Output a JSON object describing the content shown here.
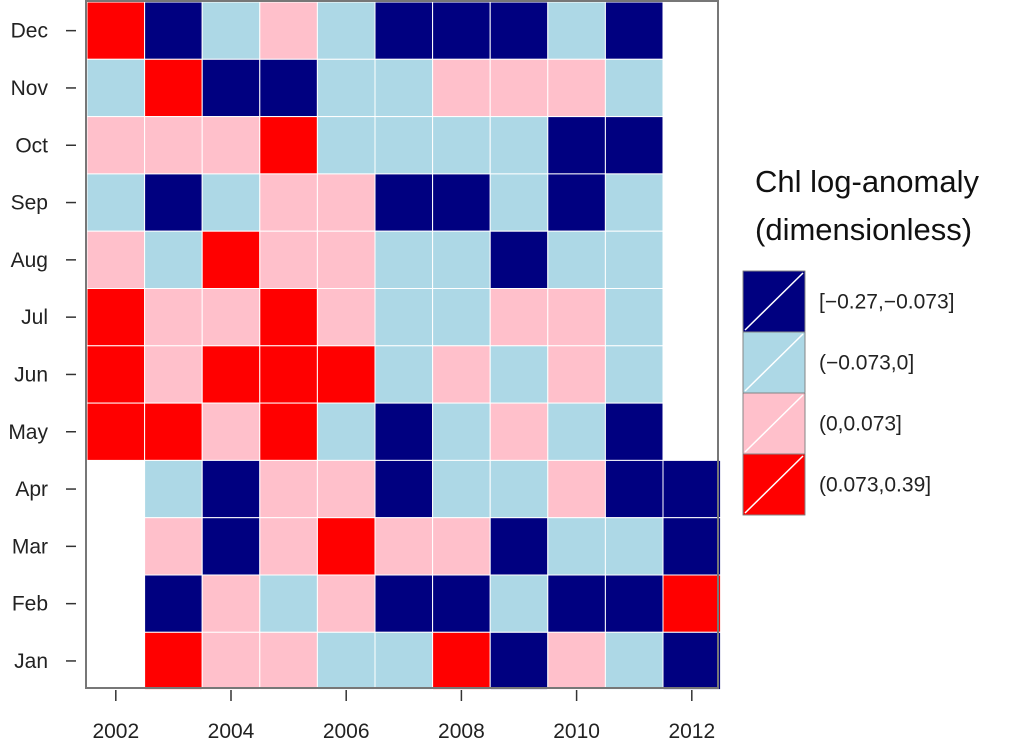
{
  "chart_data": {
    "type": "heatmap",
    "x": [
      2002,
      2003,
      2004,
      2005,
      2006,
      2007,
      2008,
      2009,
      2010,
      2011,
      2012
    ],
    "y": [
      "Jan",
      "Feb",
      "Mar",
      "Apr",
      "May",
      "Jun",
      "Jul",
      "Aug",
      "Sep",
      "Oct",
      "Nov",
      "Dec"
    ],
    "x_tick_labels": [
      "2002",
      "2004",
      "2006",
      "2008",
      "2010",
      "2012"
    ],
    "y_tick_labels": [
      "Dec",
      "Nov",
      "Oct",
      "Sep",
      "Aug",
      "Jul",
      "Jun",
      "May",
      "Apr",
      "Mar",
      "Feb",
      "Jan"
    ],
    "value_key": "category index: 0 = [−0.27,−0.073], 1 = (−0.073,0], 2 = (0,0.073], 3 = (0.073,0.39], null = no data",
    "rows": {
      "Dec": [
        3,
        0,
        1,
        2,
        1,
        0,
        0,
        0,
        1,
        0,
        null
      ],
      "Nov": [
        1,
        3,
        0,
        0,
        1,
        1,
        2,
        2,
        2,
        1,
        null
      ],
      "Oct": [
        2,
        2,
        2,
        3,
        1,
        1,
        1,
        1,
        0,
        0,
        null
      ],
      "Sep": [
        1,
        0,
        1,
        2,
        2,
        0,
        0,
        1,
        0,
        1,
        null
      ],
      "Aug": [
        2,
        1,
        3,
        2,
        2,
        1,
        1,
        0,
        1,
        1,
        null
      ],
      "Jul": [
        3,
        2,
        2,
        3,
        2,
        1,
        1,
        2,
        2,
        1,
        null
      ],
      "Jun": [
        3,
        2,
        3,
        3,
        3,
        1,
        2,
        1,
        2,
        1,
        null
      ],
      "May": [
        3,
        3,
        2,
        3,
        1,
        0,
        1,
        2,
        1,
        0,
        null
      ],
      "Apr": [
        null,
        1,
        0,
        2,
        2,
        0,
        1,
        1,
        2,
        0,
        0
      ],
      "Mar": [
        null,
        2,
        0,
        2,
        3,
        2,
        2,
        0,
        1,
        1,
        0
      ],
      "Feb": [
        null,
        0,
        2,
        1,
        2,
        0,
        0,
        1,
        0,
        0,
        3
      ],
      "Jan": [
        null,
        3,
        2,
        2,
        1,
        1,
        3,
        0,
        2,
        1,
        0
      ]
    },
    "legend": {
      "title_lines": [
        "Chl log-anomaly",
        "(dimensionless)"
      ],
      "entries": [
        {
          "label": "[−0.27,−0.073]",
          "color": "#000080"
        },
        {
          "label": "(−0.073,0]",
          "color": "#add8e6"
        },
        {
          "label": "(0,0.073]",
          "color": "#ffc0cb"
        },
        {
          "label": "(0.073,0.39]",
          "color": "#ff0000"
        }
      ],
      "placement": "right"
    },
    "grid": false
  }
}
